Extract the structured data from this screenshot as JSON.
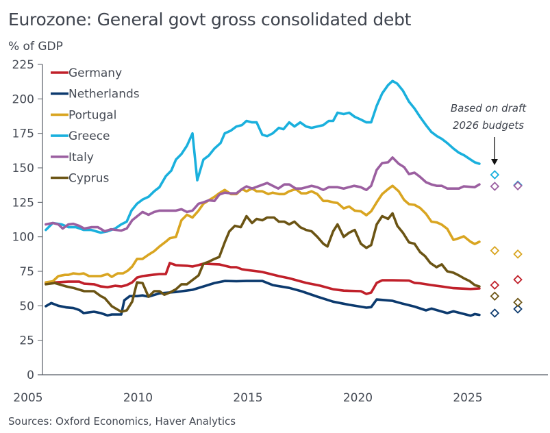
{
  "chart_data": {
    "type": "line",
    "title": "Eurozone: General govt gross consolidated debt",
    "ylabel": "% of GDP",
    "xlabel": "",
    "ylim": [
      0,
      225
    ],
    "yticks": [
      0,
      25,
      50,
      75,
      100,
      125,
      150,
      175,
      200,
      225
    ],
    "xlim": [
      2005,
      2028
    ],
    "xticks": [
      2005,
      2010,
      2015,
      2020,
      2025
    ],
    "grid": false,
    "legend": "top-left",
    "source": "Sources: Oxford Economics, Haver Analytics",
    "annotation": {
      "lines": [
        "Based on draft",
        "2026 budgets"
      ],
      "arrow": "down"
    },
    "projection_x": [
      2026.35,
      2027.4
    ],
    "series": [
      {
        "name": "Germany",
        "color": "#c0202a",
        "x": [
          2005.93,
          2006.96,
          2007.45,
          2007.68,
          2008.12,
          2008.43,
          2008.74,
          2009.08,
          2009.36,
          2009.61,
          2009.86,
          2010.08,
          2010.33,
          2010.86,
          2011.1,
          2011.39,
          2011.57,
          2011.85,
          2012.35,
          2012.6,
          2012.88,
          2013.1,
          2013.82,
          2014.07,
          2014.35,
          2014.6,
          2014.85,
          2015.06,
          2015.78,
          2016.53,
          2017.0,
          2017.77,
          2018.4,
          2019.0,
          2019.48,
          2020.26,
          2020.51,
          2020.73,
          2020.98,
          2021.23,
          2021.7,
          2022.45,
          2022.7,
          2022.95,
          2023.47,
          2023.94,
          2024.47,
          2025.25,
          2025.65
        ],
        "y": [
          66.5,
          67.5,
          67.5,
          66,
          65.6,
          64,
          63.5,
          64.5,
          64,
          65,
          67,
          70.5,
          71.5,
          72.6,
          73,
          73,
          81,
          79.4,
          79,
          78.5,
          79.5,
          80.5,
          80,
          79,
          78,
          78,
          76.5,
          76,
          74.5,
          71.5,
          70,
          66.6,
          64.6,
          62,
          61,
          60.6,
          58.6,
          59.6,
          66.6,
          68.5,
          68.5,
          68.3,
          66.6,
          66.3,
          65,
          64,
          62.8,
          62.2,
          62.6
        ],
        "projection": [
          65,
          69
        ]
      },
      {
        "name": "Netherlands",
        "color": "#0c3a6e",
        "x": [
          2005.93,
          2006.18,
          2006.5,
          2006.87,
          2007.18,
          2007.45,
          2007.65,
          2008.12,
          2008.43,
          2008.74,
          2008.93,
          2009.36,
          2009.5,
          2009.75,
          2010.08,
          2010.33,
          2010.6,
          2011.1,
          2011.85,
          2012.6,
          2013.1,
          2013.6,
          2014.07,
          2014.6,
          2015.06,
          2015.78,
          2016.25,
          2017.0,
          2017.55,
          2018.28,
          2019.0,
          2019.73,
          2020.51,
          2020.73,
          2020.98,
          2021.7,
          2022.17,
          2022.7,
          2023.22,
          2023.47,
          2024.19,
          2024.47,
          2025.25,
          2025.44,
          2025.65
        ],
        "y": [
          49.7,
          52,
          50,
          48.8,
          48.4,
          47,
          44.7,
          45.7,
          44.7,
          43,
          43.7,
          43.7,
          54,
          57,
          57,
          57.5,
          56.6,
          59,
          60,
          61.6,
          64,
          66.5,
          68,
          67.8,
          68,
          68,
          65,
          63,
          60.6,
          56.6,
          53,
          50.7,
          48.7,
          49,
          54.6,
          53.6,
          51.5,
          49.4,
          46.7,
          48,
          44.7,
          46,
          42.8,
          44,
          43.4
        ],
        "projection": [
          44.7,
          47.7
        ]
      },
      {
        "name": "Portugal",
        "color": "#d9a521",
        "x": [
          2005.93,
          2006.25,
          2006.5,
          2006.8,
          2006.96,
          2007.18,
          2007.45,
          2007.65,
          2007.9,
          2008.43,
          2008.74,
          2008.93,
          2009.2,
          2009.45,
          2009.66,
          2009.86,
          2010.08,
          2010.33,
          2010.6,
          2010.86,
          2011.1,
          2011.39,
          2011.57,
          2011.85,
          2012.1,
          2012.35,
          2012.6,
          2012.88,
          2013.1,
          2013.35,
          2013.6,
          2013.82,
          2014.07,
          2014.35,
          2014.6,
          2014.85,
          2015.06,
          2015.31,
          2015.52,
          2015.78,
          2016.05,
          2016.25,
          2016.53,
          2016.78,
          2017.0,
          2017.3,
          2017.55,
          2017.77,
          2018.02,
          2018.28,
          2018.55,
          2018.74,
          2019.0,
          2019.2,
          2019.48,
          2019.73,
          2019.98,
          2020.26,
          2020.51,
          2020.73,
          2020.98,
          2021.23,
          2021.5,
          2021.7,
          2021.98,
          2022.23,
          2022.45,
          2022.7,
          2022.95,
          2023.22,
          2023.47,
          2023.72,
          2023.94,
          2024.19,
          2024.47,
          2024.72,
          2024.94,
          2025.25,
          2025.44,
          2025.65
        ],
        "y": [
          67,
          67.8,
          71.5,
          72.4,
          72.4,
          73.5,
          73,
          73.5,
          71.5,
          71.5,
          73,
          71,
          73.5,
          73.5,
          75.5,
          78.5,
          84,
          84,
          87,
          89.6,
          93,
          96.5,
          99,
          100,
          112,
          116,
          114,
          119,
          124,
          126.5,
          129,
          131.6,
          134,
          131,
          131,
          134.6,
          133,
          135,
          133,
          133,
          131,
          132,
          131,
          131,
          133,
          134.6,
          131.5,
          131.5,
          133,
          131,
          126,
          126,
          125,
          124.5,
          120.6,
          122,
          119,
          118.5,
          115.7,
          118.5,
          125,
          131,
          134.6,
          137,
          133,
          126.7,
          123.7,
          123.2,
          121,
          116.7,
          111,
          110.4,
          108.8,
          105.8,
          97.8,
          99,
          100.4,
          96.4,
          94.8,
          96.4
        ],
        "projection": [
          90,
          87.5
        ]
      },
      {
        "name": "Greece",
        "color": "#1ab0dd",
        "x": [
          2005.93,
          2006.25,
          2006.65,
          2006.96,
          2007.3,
          2007.65,
          2008.0,
          2008.43,
          2008.74,
          2009.08,
          2009.36,
          2009.61,
          2009.83,
          2010.08,
          2010.33,
          2010.6,
          2010.86,
          2011.1,
          2011.39,
          2011.64,
          2011.85,
          2012.1,
          2012.35,
          2012.6,
          2012.82,
          2013.1,
          2013.35,
          2013.6,
          2013.88,
          2014.07,
          2014.35,
          2014.6,
          2014.85,
          2015.06,
          2015.31,
          2015.52,
          2015.78,
          2016.0,
          2016.25,
          2016.53,
          2016.74,
          2017.0,
          2017.24,
          2017.5,
          2017.77,
          2018.02,
          2018.28,
          2018.55,
          2018.8,
          2019.0,
          2019.2,
          2019.48,
          2019.73,
          2019.98,
          2020.26,
          2020.51,
          2020.73,
          2020.98,
          2021.23,
          2021.5,
          2021.7,
          2021.92,
          2022.17,
          2022.45,
          2022.7,
          2022.95,
          2023.22,
          2023.47,
          2023.72,
          2023.94,
          2024.19,
          2024.47,
          2024.72,
          2024.97,
          2025.25,
          2025.44,
          2025.65
        ],
        "y": [
          105,
          110,
          109,
          107,
          107,
          105,
          105,
          103,
          104,
          106,
          109,
          111,
          119,
          124,
          127,
          129,
          133,
          136,
          144,
          148,
          156,
          160,
          166,
          175,
          141,
          156,
          159,
          164,
          168,
          175,
          177,
          180,
          181,
          184,
          183,
          183,
          174,
          173,
          175,
          179,
          178,
          183,
          180,
          183,
          180,
          179,
          180,
          181,
          184,
          184,
          190,
          189,
          190,
          187,
          185,
          183,
          183,
          195,
          204,
          210,
          213,
          211,
          206,
          198,
          193,
          187,
          181,
          176,
          173,
          171,
          168,
          164,
          161,
          159,
          156,
          154,
          153
        ],
        "projection": [
          145,
          137.5
        ]
      },
      {
        "name": "Italy",
        "color": "#9b5fa0",
        "x": [
          2005.93,
          2006.25,
          2006.5,
          2006.7,
          2006.96,
          2007.18,
          2007.45,
          2007.68,
          2008.0,
          2008.3,
          2008.61,
          2008.9,
          2009.36,
          2009.61,
          2009.86,
          2010.33,
          2010.6,
          2010.86,
          2011.1,
          2011.39,
          2011.85,
          2012.1,
          2012.35,
          2012.6,
          2012.88,
          2013.1,
          2013.35,
          2013.6,
          2013.82,
          2014.07,
          2014.35,
          2014.6,
          2014.85,
          2015.06,
          2015.31,
          2016.0,
          2016.5,
          2016.78,
          2017.0,
          2017.3,
          2017.55,
          2018.02,
          2018.28,
          2018.55,
          2018.8,
          2019.2,
          2019.48,
          2019.95,
          2020.26,
          2020.51,
          2020.73,
          2020.98,
          2021.23,
          2021.5,
          2021.7,
          2021.98,
          2022.23,
          2022.45,
          2022.7,
          2022.95,
          2023.22,
          2023.47,
          2023.72,
          2023.94,
          2024.19,
          2024.72,
          2024.94,
          2025.44,
          2025.65
        ],
        "y": [
          109,
          110,
          109,
          106,
          109,
          109.4,
          108,
          106,
          107,
          107,
          104,
          105.5,
          104.5,
          106,
          112,
          118,
          116,
          118,
          119,
          119,
          119,
          120,
          118,
          119,
          124,
          125,
          126.5,
          126,
          130.6,
          132,
          131.5,
          131.5,
          134.6,
          136.6,
          135,
          139,
          135,
          138,
          138,
          135,
          135,
          137,
          136,
          134,
          136,
          136,
          135,
          137,
          136,
          134,
          137,
          148.5,
          153.5,
          154,
          157.5,
          153,
          150.5,
          145.5,
          146.5,
          143.5,
          139.6,
          138,
          137,
          137,
          135,
          135,
          136.6,
          136,
          138
        ],
        "projection": [
          136.6,
          137
        ]
      },
      {
        "name": "Cyprus",
        "color": "#6b5414",
        "x": [
          2005.93,
          2006.34,
          2006.87,
          2007.18,
          2007.68,
          2008.12,
          2008.43,
          2008.61,
          2008.93,
          2009.36,
          2009.61,
          2009.86,
          2010.08,
          2010.33,
          2010.6,
          2010.86,
          2011.1,
          2011.32,
          2011.57,
          2011.85,
          2012.1,
          2012.35,
          2012.63,
          2012.88,
          2013.1,
          2013.35,
          2013.6,
          2013.82,
          2014.07,
          2014.28,
          2014.53,
          2014.8,
          2015.06,
          2015.31,
          2015.52,
          2015.78,
          2016.0,
          2016.31,
          2016.53,
          2016.78,
          2017.0,
          2017.24,
          2017.5,
          2017.77,
          2018.02,
          2018.28,
          2018.55,
          2018.74,
          2019.0,
          2019.2,
          2019.48,
          2019.73,
          2019.98,
          2020.26,
          2020.51,
          2020.73,
          2020.98,
          2021.23,
          2021.5,
          2021.7,
          2021.92,
          2022.17,
          2022.45,
          2022.7,
          2022.95,
          2023.18,
          2023.42,
          2023.7,
          2023.94,
          2024.19,
          2024.47,
          2024.72,
          2024.94,
          2025.2,
          2025.44,
          2025.65
        ],
        "y": [
          65.6,
          66.5,
          64,
          63,
          60.6,
          60.6,
          57,
          55.6,
          49.7,
          45.7,
          46.7,
          53,
          67,
          66.5,
          56.6,
          60.6,
          60.6,
          58,
          59.6,
          62,
          65.6,
          65.6,
          69,
          72,
          80.5,
          82,
          84,
          85.4,
          96,
          104,
          108,
          107,
          115,
          110,
          113,
          112,
          114,
          114,
          111,
          111,
          109,
          111,
          107,
          105,
          104,
          100,
          95,
          93,
          104,
          109,
          100,
          103,
          105,
          95,
          92,
          94,
          109,
          115,
          113,
          117,
          108,
          103,
          96,
          95,
          89,
          86,
          81,
          78,
          80,
          75,
          74,
          72,
          70,
          68,
          65,
          64
        ],
        "projection": [
          57,
          52.5
        ]
      }
    ]
  }
}
